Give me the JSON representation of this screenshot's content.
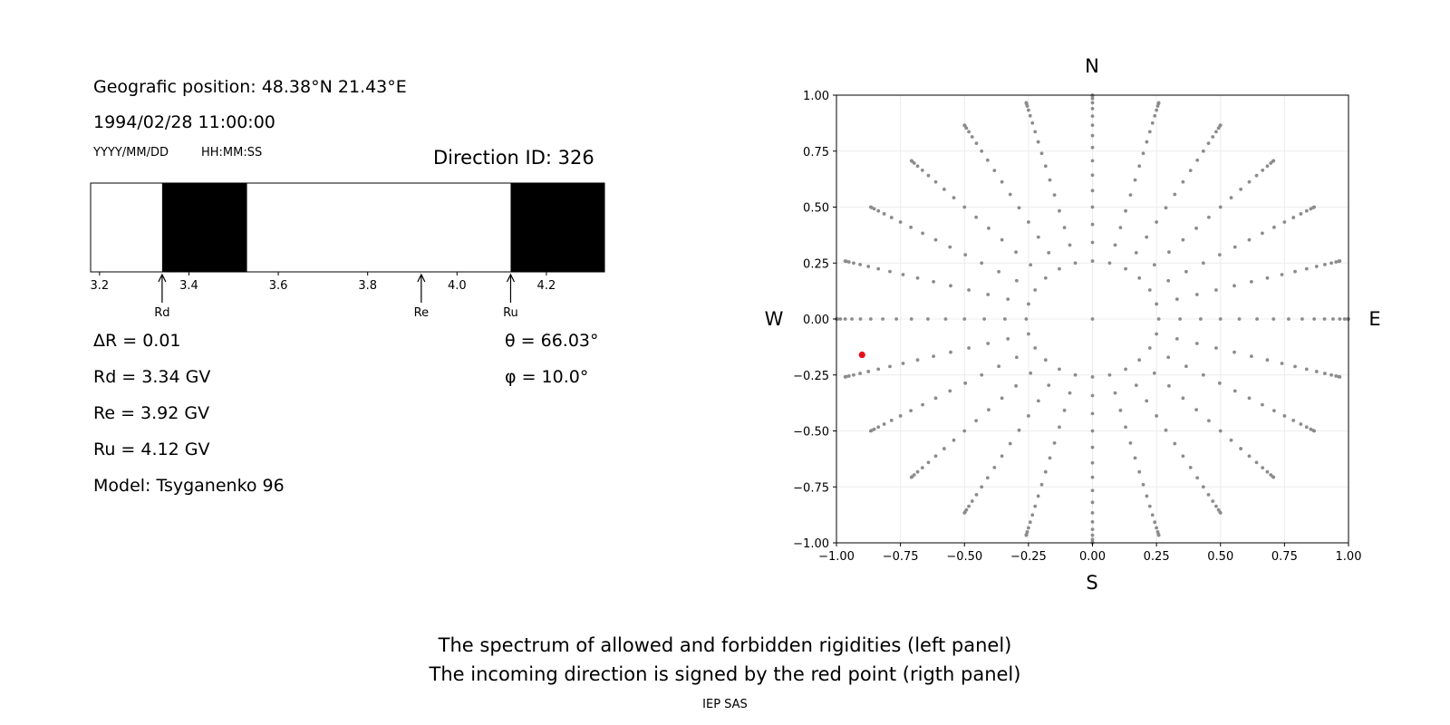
{
  "left_panel": {
    "position": "Geografic position: 48.38°N 21.43°E",
    "datetime": "1994/02/28 11:00:00",
    "date_format": "YYYY/MM/DD",
    "time_format": "HH:MM:SS",
    "direction": "Direction ID: 326",
    "delta_r": "ΔR = 0.01",
    "rd": "Rd = 3.34 GV",
    "re": "Re = 3.92 GV",
    "ru": "Ru = 4.12 GV",
    "model": "Model: Tsyganenko 96",
    "theta": "θ = 66.03°",
    "phi": "φ = 10.0°"
  },
  "chart_data": [
    {
      "type": "bar",
      "description_of_encoding": "rigidity spectrum strip; black = forbidden bands, white = allowed",
      "xlim": [
        3.18,
        4.33
      ],
      "ticks": [
        "3.2",
        "3.4",
        "3.6",
        "3.8",
        "4.0",
        "4.2"
      ],
      "tick_values": [
        3.2,
        3.4,
        3.6,
        3.8,
        4.0,
        4.2
      ],
      "forbidden_bands": [
        [
          3.34,
          3.53
        ],
        [
          4.12,
          4.33
        ]
      ],
      "markers": [
        {
          "label": "Rd",
          "value": 3.34
        },
        {
          "label": "Re",
          "value": 3.92
        },
        {
          "label": "Ru",
          "value": 4.12
        }
      ]
    },
    {
      "type": "scatter",
      "xlim": [
        -1.0,
        1.0
      ],
      "ylim": [
        -1.0,
        1.0
      ],
      "x_ticks": [
        "−1.00",
        "−0.75",
        "−0.50",
        "−0.25",
        "0.00",
        "0.25",
        "0.50",
        "0.75",
        "1.00"
      ],
      "y_ticks": [
        "1.00",
        "0.75",
        "0.50",
        "0.25",
        "0.00",
        "−0.25",
        "−0.50",
        "−0.75",
        "−1.00"
      ],
      "tick_values": [
        -1.0,
        -0.75,
        -0.5,
        -0.25,
        0.0,
        0.25,
        0.5,
        0.75,
        1.0
      ],
      "grid": true,
      "compass": {
        "north": "N",
        "south": "S",
        "west": "W",
        "east": "E"
      },
      "direction_grid": {
        "azimuth_step_deg": 15,
        "zenith_step_deg": 5,
        "zenith_max_deg": 90,
        "inner_ring_deg": 15,
        "gray_color": "#8c8c8c"
      },
      "selected_point": {
        "x": -0.9,
        "y": -0.16,
        "color": "#e8101a"
      }
    }
  ],
  "caption": {
    "line1": "The spectrum of allowed and forbidden rigidities (left panel)",
    "line2": "The incoming direction is signed by the red point (rigth panel)",
    "credit": "IEP SAS"
  }
}
